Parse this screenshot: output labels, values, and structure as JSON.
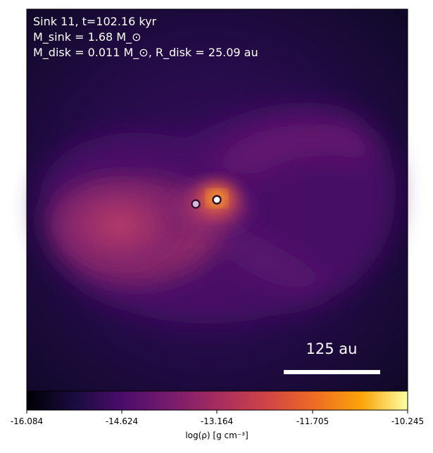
{
  "panel": {
    "title_line": "Sink 11, t=102.16 kyr",
    "mass_line": "M_sink = 1.68 M_⊙",
    "disk_line": "M_disk = 0.011 M_⊙, R_disk = 25.09 au"
  },
  "scalebar": {
    "label": "125 au"
  },
  "colorbar": {
    "ticks": [
      "-16.084",
      "-14.624",
      "-13.164",
      "-11.705",
      "-10.245"
    ],
    "label": "log(ρ) [g cm⁻³]",
    "colormap": "inferno"
  },
  "sinks": [
    {
      "name": "primary",
      "fill": "#ffffff"
    },
    {
      "name": "secondary",
      "fill": "#d9b8d9"
    }
  ],
  "colors": {
    "background_dark": "#0d0824",
    "envelope": "#4a1268",
    "dense_gas": "#b53a68",
    "core": "#f2782a"
  }
}
